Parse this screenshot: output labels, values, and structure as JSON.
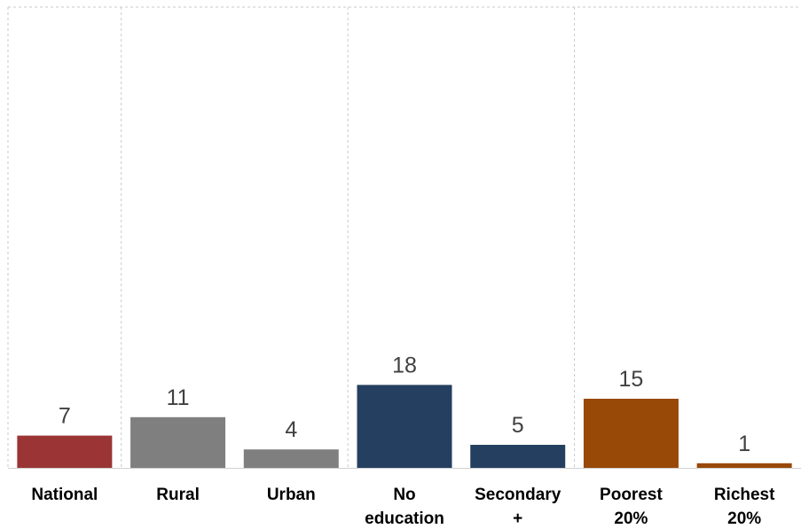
{
  "chart_data": {
    "type": "bar",
    "categories": [
      [
        "National"
      ],
      [
        "Rural"
      ],
      [
        "Urban"
      ],
      [
        "No",
        "education"
      ],
      [
        "Secondary",
        "+"
      ],
      [
        "Poorest",
        "20%"
      ],
      [
        "Richest",
        "20%"
      ]
    ],
    "values": [
      7,
      11,
      4,
      18,
      5,
      15,
      1
    ],
    "value_labels": [
      "7",
      "11",
      "4",
      "18",
      "5",
      "15",
      "1"
    ],
    "groups": [
      {
        "color": "#9b3535",
        "indices": [
          0
        ]
      },
      {
        "color": "#7f7f7f",
        "indices": [
          1,
          2
        ]
      },
      {
        "color": "#243f60",
        "indices": [
          3,
          4
        ]
      },
      {
        "color": "#984807",
        "indices": [
          5,
          6
        ]
      }
    ],
    "ylim": [
      0,
      100
    ],
    "gridlines": "vertical dashed group separators",
    "legend": "none"
  }
}
